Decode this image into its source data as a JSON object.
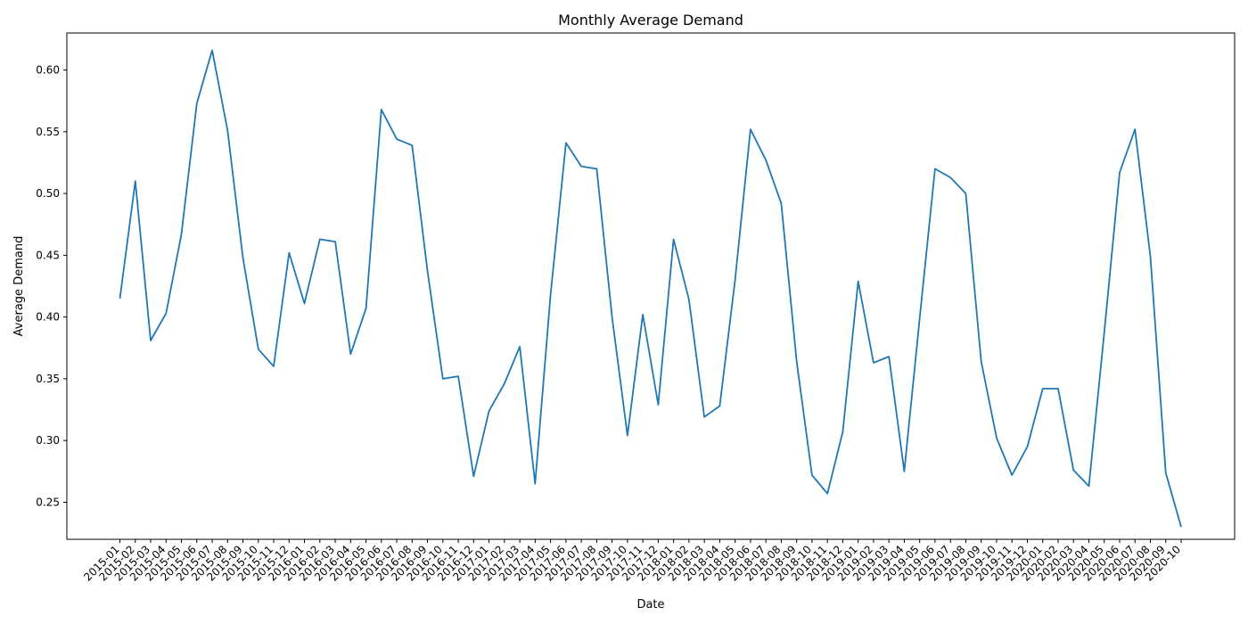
{
  "chart_data": {
    "type": "line",
    "title": "Monthly Average Demand",
    "xlabel": "Date",
    "ylabel": "Average Demand",
    "ylim": [
      0.22,
      0.63
    ],
    "yticks": [
      "0.25",
      "0.30",
      "0.35",
      "0.40",
      "0.45",
      "0.50",
      "0.55",
      "0.60"
    ],
    "grid": false,
    "legend": "none",
    "x": [
      "2015-01",
      "2015-02",
      "2015-03",
      "2015-04",
      "2015-05",
      "2015-06",
      "2015-07",
      "2015-08",
      "2015-09",
      "2015-10",
      "2015-11",
      "2015-12",
      "2016-01",
      "2016-02",
      "2016-03",
      "2016-04",
      "2016-05",
      "2016-06",
      "2016-07",
      "2016-08",
      "2016-09",
      "2016-10",
      "2016-11",
      "2016-12",
      "2017-01",
      "2017-02",
      "2017-03",
      "2017-04",
      "2017-05",
      "2017-06",
      "2017-07",
      "2017-08",
      "2017-09",
      "2017-10",
      "2017-11",
      "2017-12",
      "2018-01",
      "2018-02",
      "2018-03",
      "2018-04",
      "2018-05",
      "2018-06",
      "2018-07",
      "2018-08",
      "2018-09",
      "2018-10",
      "2018-11",
      "2018-12",
      "2019-01",
      "2019-02",
      "2019-03",
      "2019-04",
      "2019-05",
      "2019-06",
      "2019-07",
      "2019-08",
      "2019-09",
      "2019-10",
      "2019-11",
      "2019-12",
      "2020-01",
      "2020-02",
      "2020-03",
      "2020-04",
      "2020-05",
      "2020-06",
      "2020-07",
      "2020-08",
      "2020-09",
      "2020-10"
    ],
    "series": [
      {
        "color": "#1f77b4",
        "values": [
          0.415,
          0.51,
          0.381,
          0.403,
          0.467,
          0.573,
          0.616,
          0.551,
          0.448,
          0.374,
          0.36,
          0.452,
          0.411,
          0.463,
          0.461,
          0.37,
          0.407,
          0.568,
          0.544,
          0.539,
          0.437,
          0.35,
          0.352,
          0.271,
          0.324,
          0.346,
          0.376,
          0.265,
          0.418,
          0.541,
          0.522,
          0.52,
          0.4,
          0.304,
          0.402,
          0.329,
          0.463,
          0.414,
          0.319,
          0.328,
          0.43,
          0.552,
          0.527,
          0.492,
          0.364,
          0.272,
          0.257,
          0.307,
          0.429,
          0.363,
          0.368,
          0.275,
          0.399,
          0.52,
          0.513,
          0.5,
          0.364,
          0.302,
          0.272,
          0.295,
          0.342,
          0.342,
          0.276,
          0.263,
          0.387,
          0.517,
          0.552,
          0.449,
          0.274,
          0.23
        ]
      }
    ]
  }
}
